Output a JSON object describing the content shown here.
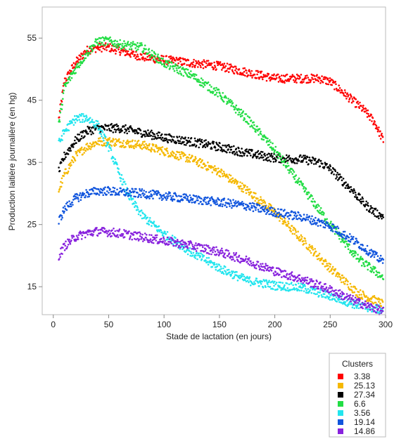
{
  "chart_data": {
    "type": "scatter",
    "xlabel": "Stade de lactation (en jours)",
    "ylabel": "Production laitière journalière (en hg)",
    "xlim": [
      -10,
      300
    ],
    "ylim": [
      10.5,
      60
    ],
    "x_ticks": [
      0,
      50,
      100,
      150,
      200,
      250,
      300
    ],
    "y_ticks": [
      15,
      25,
      35,
      45,
      55
    ],
    "grid": false,
    "legend": {
      "title": "Clusters",
      "placement": "bottom-right"
    },
    "series": [
      {
        "name": "3.38",
        "color": "#ff0000",
        "x": [
          5,
          10,
          20,
          30,
          40,
          50,
          60,
          80,
          100,
          125,
          150,
          175,
          200,
          225,
          240,
          250,
          260,
          270,
          280,
          290,
          298
        ],
        "y": [
          42,
          48,
          51,
          53,
          53.5,
          53.5,
          53,
          52,
          51.5,
          51,
          50.5,
          49.5,
          48.5,
          48.5,
          48.5,
          48,
          46.5,
          45,
          43.5,
          41.5,
          38.5
        ]
      },
      {
        "name": "25.13",
        "color": "#f5b800",
        "x": [
          5,
          10,
          20,
          30,
          40,
          50,
          60,
          80,
          100,
          125,
          150,
          175,
          200,
          225,
          250,
          275,
          298
        ],
        "y": [
          30.5,
          33,
          36,
          37.5,
          38.3,
          38.4,
          38.2,
          37.8,
          36.8,
          35.5,
          33.5,
          30.5,
          27,
          22.5,
          18,
          14,
          12.2
        ]
      },
      {
        "name": "27.34",
        "color": "#000000",
        "x": [
          5,
          10,
          20,
          30,
          40,
          50,
          60,
          80,
          100,
          125,
          150,
          175,
          200,
          225,
          240,
          250,
          260,
          270,
          280,
          290,
          298
        ],
        "y": [
          33.5,
          36,
          38.5,
          40,
          40.5,
          40.5,
          40.5,
          39.8,
          39,
          38.3,
          37.5,
          36.5,
          35.7,
          35.5,
          35,
          34,
          32.2,
          30.5,
          28.5,
          27,
          26.3
        ]
      },
      {
        "name": "6.6",
        "color": "#22dd44",
        "x": [
          5,
          10,
          20,
          30,
          40,
          50,
          60,
          80,
          100,
          125,
          150,
          175,
          200,
          225,
          250,
          275,
          298
        ],
        "y": [
          41,
          47,
          50,
          52.5,
          54.5,
          54.5,
          54,
          53.5,
          51,
          49,
          46,
          42,
          37,
          31,
          25,
          19.5,
          16.5
        ]
      },
      {
        "name": "3.56",
        "color": "#22e5ee",
        "x": [
          5,
          10,
          20,
          30,
          40,
          50,
          60,
          70,
          80,
          100,
          125,
          150,
          175,
          200,
          225,
          250,
          275,
          298
        ],
        "y": [
          38,
          40,
          42,
          42.2,
          41,
          37.5,
          33,
          29,
          26.5,
          23.5,
          20.5,
          18,
          16,
          15.2,
          14.8,
          13.5,
          12,
          11.2
        ]
      },
      {
        "name": "19.14",
        "color": "#1155dd",
        "x": [
          5,
          10,
          20,
          30,
          40,
          50,
          60,
          80,
          100,
          125,
          150,
          175,
          200,
          225,
          250,
          275,
          298
        ],
        "y": [
          25.5,
          27.5,
          29.2,
          30,
          30.4,
          30.4,
          30.2,
          30,
          29.6,
          29.1,
          28.6,
          28,
          27,
          26.2,
          24.8,
          22,
          19
        ]
      },
      {
        "name": "14.86",
        "color": "#8822dd",
        "x": [
          5,
          10,
          20,
          30,
          40,
          50,
          60,
          80,
          100,
          125,
          150,
          175,
          200,
          225,
          250,
          275,
          298
        ],
        "y": [
          20,
          21.5,
          23,
          23.6,
          23.9,
          23.8,
          23.6,
          23,
          22.4,
          21.6,
          20.6,
          19.2,
          17.5,
          16.2,
          14.5,
          12.5,
          11
        ]
      }
    ]
  }
}
